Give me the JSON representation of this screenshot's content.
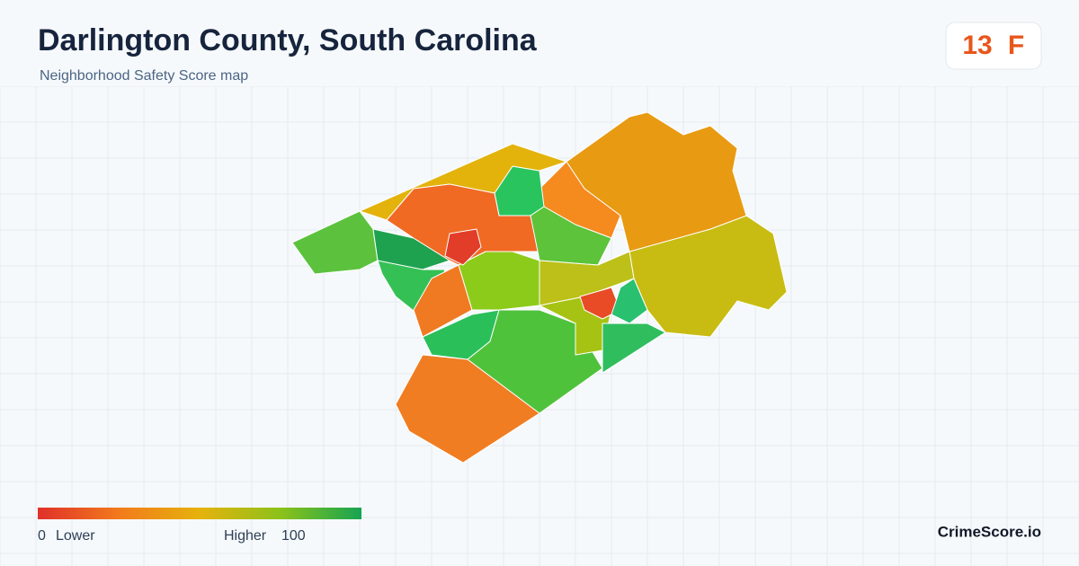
{
  "header": {
    "title": "Darlington County, South Carolina",
    "subtitle": "Neighborhood Safety Score map"
  },
  "score": {
    "value": 13,
    "grade": "F"
  },
  "legend": {
    "min": 0,
    "low_label": "Lower",
    "high_label": "Higher",
    "max": 100
  },
  "brand": "CrimeScore.io"
}
